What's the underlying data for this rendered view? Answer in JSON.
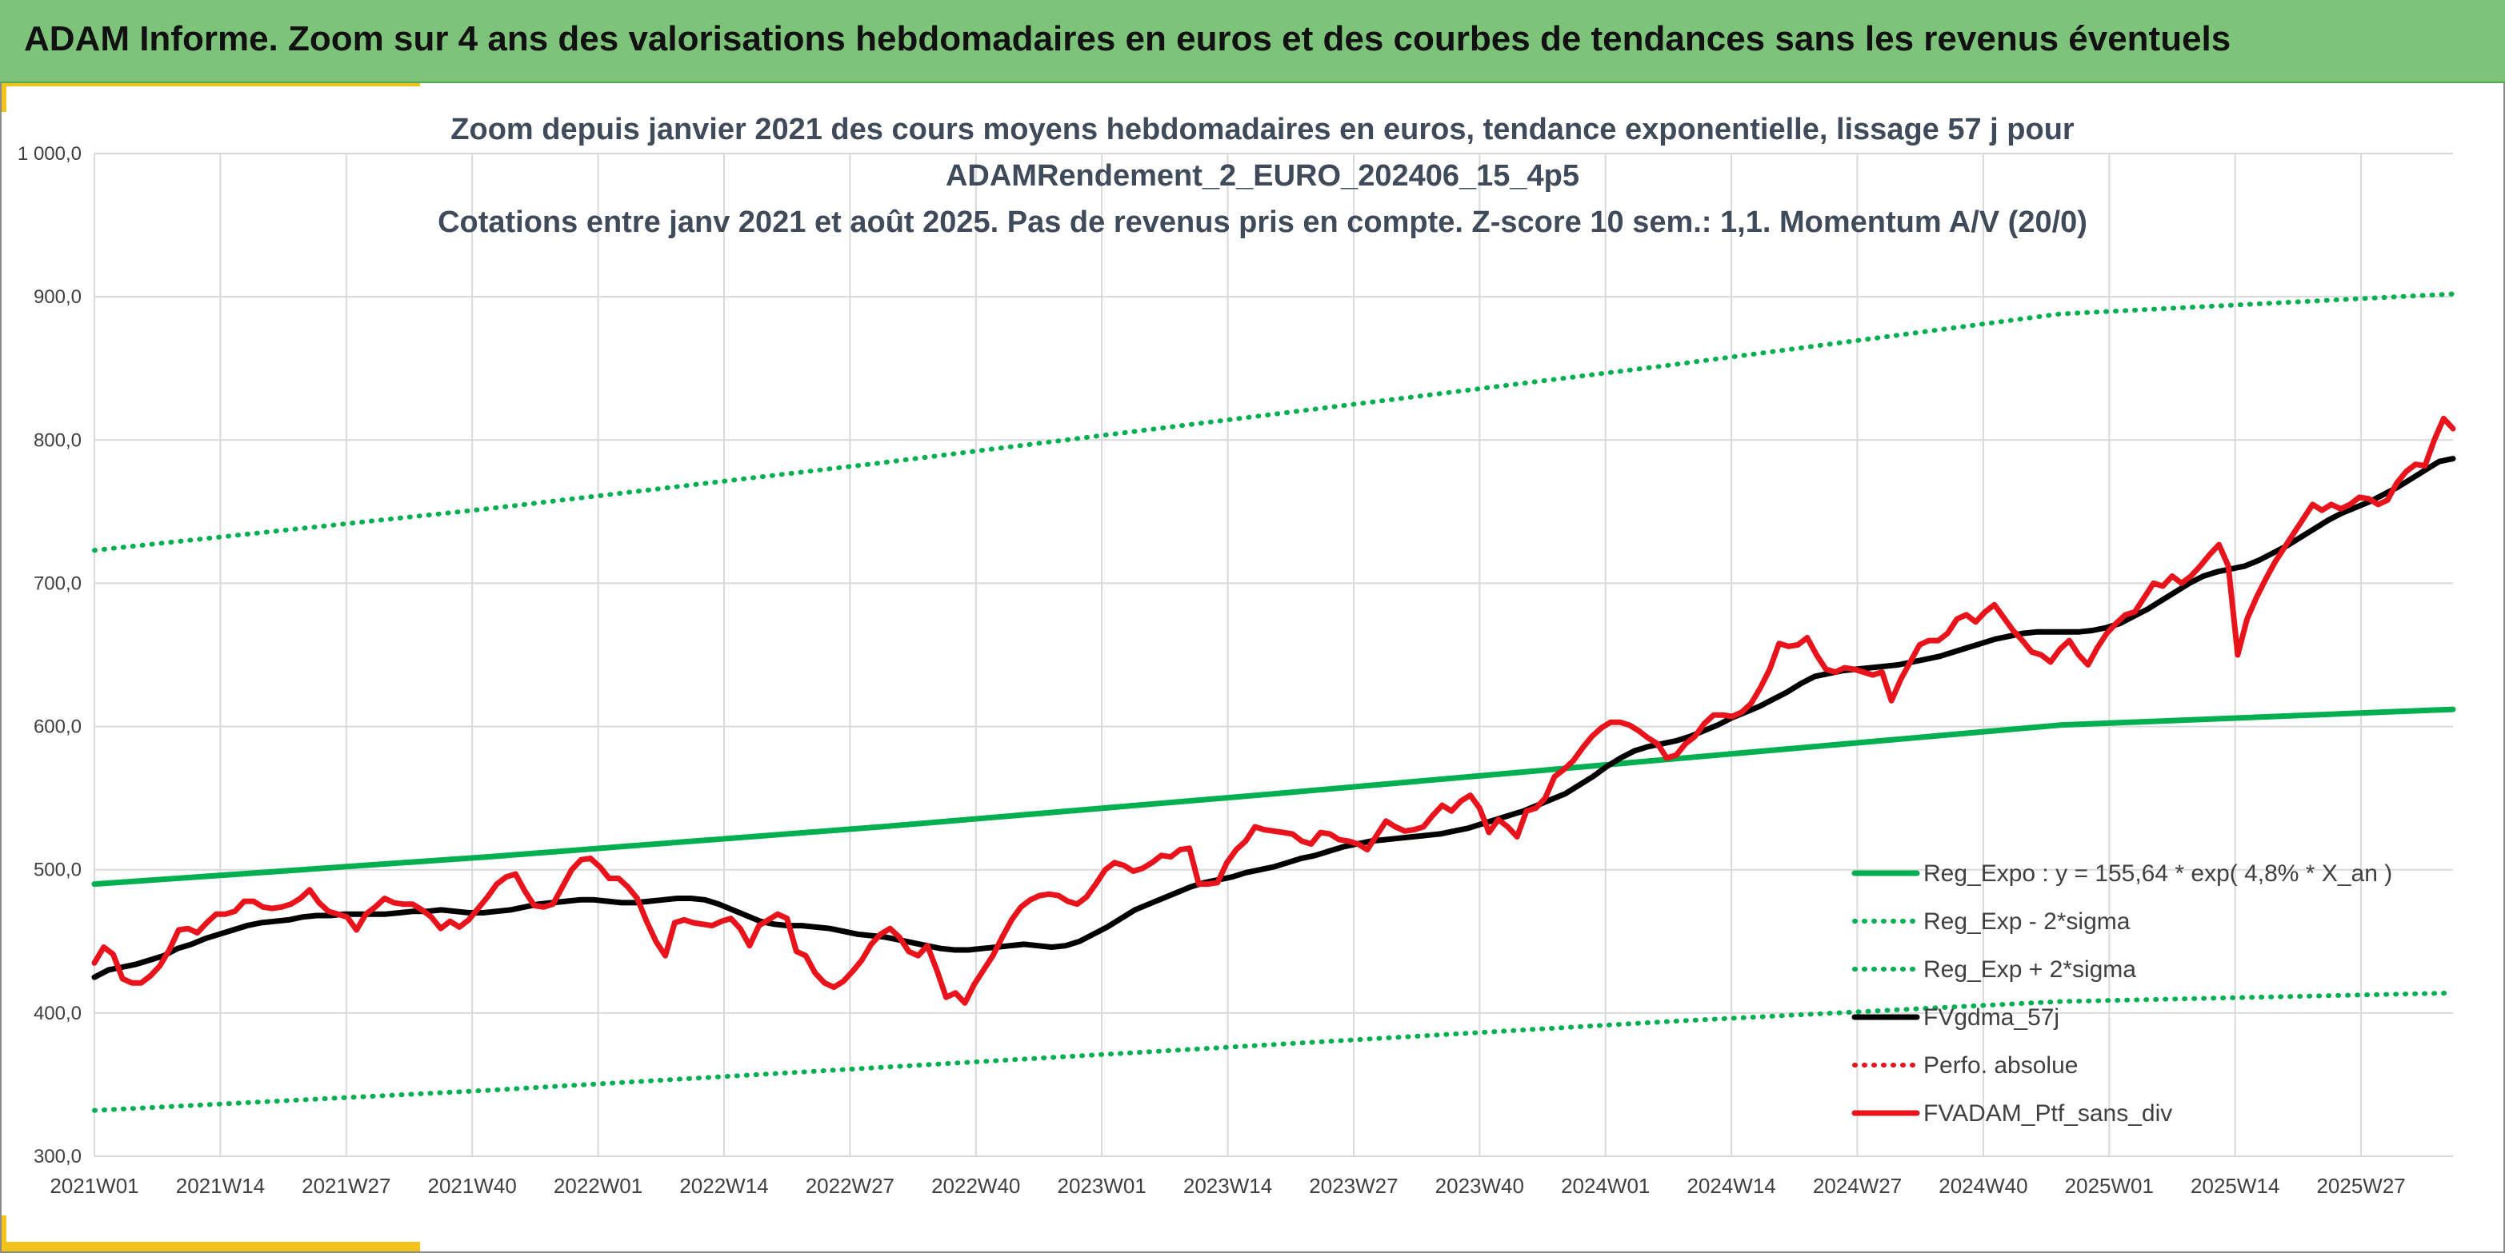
{
  "header": {
    "title": "ADAM Informe. Zoom sur 4 ans des valorisations hebdomadaires en euros et des courbes de tendances sans les revenus éventuels"
  },
  "colors": {
    "banner": "#7dc47a",
    "accent": "#f2c31a",
    "trend": "#00b050",
    "smooth": "#000000",
    "portfolio": "#e8131b"
  },
  "chart_data": {
    "type": "line",
    "title_lines": [
      "Zoom depuis janvier 2021 des cours moyens hebdomadaires en euros, tendance exponentielle, lissage 57 j pour",
      "ADAMRendement_2_EURO_202406_15_4p5",
      "Cotations entre janv 2021 et août 2025. Pas de revenus pris en compte. Z-score 10 sem.: 1,1. Momentum A/V (20/0)"
    ],
    "ylim": [
      300,
      1000
    ],
    "y_ticks": [
      {
        "value": 300,
        "label": "300,0"
      },
      {
        "value": 400,
        "label": "400,0"
      },
      {
        "value": 500,
        "label": "500,0"
      },
      {
        "value": 600,
        "label": "600,0"
      },
      {
        "value": 700,
        "label": "700,0"
      },
      {
        "value": 800,
        "label": "800,0"
      },
      {
        "value": 900,
        "label": "900,0"
      },
      {
        "value": 1000,
        "label": "1 000,0"
      }
    ],
    "x_ticks": [
      "2021W01",
      "2021W14",
      "2021W27",
      "2021W40",
      "2022W01",
      "2022W14",
      "2022W27",
      "2022W40",
      "2023W01",
      "2023W14",
      "2023W27",
      "2023W40",
      "2024W01",
      "2024W14",
      "2024W27",
      "2024W40",
      "2025W01",
      "2025W14",
      "2025W27"
    ],
    "grid": true,
    "legend_position": "bottom-right",
    "series": [
      {
        "name": "Reg_Expo : y = 155,64 * exp( 4,8% *  X_an )",
        "style": "solid-thick",
        "color": "#00b050",
        "values": [
          490,
          509,
          530,
          553,
          577,
          601,
          612
        ]
      },
      {
        "name": "Reg_Exp - 2*sigma",
        "style": "dotted",
        "color": "#00b050",
        "values": [
          332,
          346,
          362,
          378,
          394,
          408,
          414
        ]
      },
      {
        "name": "Reg_Exp + 2*sigma",
        "style": "dotted",
        "color": "#00b050",
        "values": [
          723,
          752,
          784,
          818,
          852,
          888,
          902
        ]
      },
      {
        "name": "FVgdma_57j",
        "style": "solid",
        "color": "#000000",
        "values": [
          425,
          430,
          432,
          434,
          437,
          440,
          445,
          448,
          452,
          455,
          458,
          461,
          463,
          464,
          465,
          467,
          468,
          468,
          469,
          469,
          469,
          469,
          470,
          471,
          471,
          472,
          471,
          470,
          470,
          471,
          472,
          474,
          476,
          477,
          478,
          479,
          479,
          478,
          477,
          477,
          478,
          479,
          480,
          480,
          479,
          476,
          472,
          468,
          464,
          462,
          461,
          461,
          460,
          459,
          457,
          455,
          454,
          453,
          451,
          449,
          447,
          445,
          444,
          444,
          445,
          446,
          447,
          448,
          447,
          446,
          447,
          450,
          455,
          460,
          466,
          472,
          476,
          480,
          484,
          488,
          491,
          493,
          495,
          498,
          500,
          502,
          505,
          508,
          510,
          513,
          516,
          518,
          520,
          521,
          522,
          523,
          524,
          525,
          527,
          529,
          532,
          535,
          538,
          541,
          545,
          549,
          553,
          559,
          565,
          572,
          578,
          583,
          586,
          588,
          590,
          593,
          597,
          601,
          606,
          610,
          614,
          619,
          624,
          630,
          635,
          637,
          639,
          640,
          641,
          642,
          643,
          645,
          647,
          649,
          652,
          655,
          658,
          661,
          663,
          665,
          666,
          666,
          666,
          666,
          667,
          669,
          672,
          677,
          682,
          688,
          694,
          700,
          705,
          708,
          710,
          712,
          716,
          721,
          726,
          732,
          738,
          744,
          749,
          753,
          757,
          762,
          767,
          773,
          779,
          785,
          787
        ]
      },
      {
        "name": "Perfo. absolue",
        "style": "dotted",
        "color": "#e8131b",
        "values": []
      },
      {
        "name": "FVADAM_Ptf_sans_div",
        "style": "solid-thick",
        "color": "#e8131b",
        "values": [
          435,
          446,
          441,
          424,
          421,
          421,
          426,
          433,
          444,
          458,
          459,
          456,
          463,
          469,
          469,
          471,
          478,
          478,
          474,
          473,
          474,
          476,
          480,
          486,
          477,
          471,
          469,
          467,
          458,
          469,
          474,
          480,
          477,
          476,
          476,
          472,
          467,
          459,
          464,
          460,
          465,
          473,
          481,
          490,
          495,
          497,
          485,
          475,
          474,
          476,
          488,
          500,
          507,
          508,
          502,
          494,
          494,
          488,
          480,
          464,
          450,
          440,
          463,
          465,
          463,
          462,
          461,
          464,
          466,
          459,
          447,
          461,
          465,
          469,
          466,
          443,
          440,
          428,
          421,
          418,
          422,
          429,
          437,
          448,
          455,
          459,
          453,
          443,
          440,
          447,
          430,
          411,
          414,
          407,
          420,
          430,
          440,
          453,
          465,
          474,
          479,
          482,
          483,
          482,
          478,
          476,
          481,
          490,
          500,
          505,
          503,
          499,
          501,
          505,
          510,
          509,
          514,
          515,
          490,
          490,
          491,
          505,
          514,
          520,
          530,
          528,
          527,
          526,
          525,
          520,
          518,
          526,
          525,
          521,
          520,
          518,
          514,
          524,
          534,
          530,
          527,
          528,
          530,
          538,
          545,
          541,
          548,
          552,
          543,
          526,
          535,
          530,
          523,
          541,
          543,
          550,
          565,
          570,
          576,
          585,
          593,
          599,
          603,
          603,
          601,
          597,
          592,
          588,
          578,
          580,
          588,
          593,
          602,
          608,
          608,
          607,
          610,
          616,
          627,
          640,
          658,
          656,
          657,
          662,
          650,
          640,
          638,
          641,
          640,
          638,
          636,
          638,
          618,
          633,
          645,
          657,
          660,
          660,
          665,
          675,
          678,
          673,
          680,
          685,
          676,
          667,
          660,
          652,
          650,
          645,
          654,
          660,
          650,
          643,
          655,
          665,
          672,
          678,
          680,
          690,
          700,
          698,
          705,
          700,
          705,
          712,
          720,
          727,
          712,
          650,
          675,
          690,
          703,
          715,
          725,
          735,
          745,
          755,
          751,
          755,
          752,
          755,
          760,
          759,
          755,
          758,
          770,
          778,
          783,
          782,
          800,
          815,
          808
        ]
      }
    ]
  }
}
